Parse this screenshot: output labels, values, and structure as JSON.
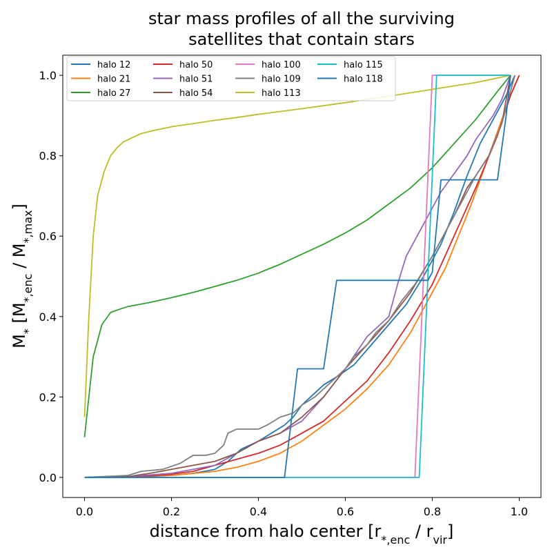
{
  "chart_data": {
    "type": "line",
    "title_lines": [
      "star mass profiles of all the surviving",
      "satellites that contain stars"
    ],
    "xlabel": "distance from halo center [r*,enc / rvir]",
    "ylabel": "M* [M*,enc / M*,max]",
    "xlim": [
      -0.05,
      1.05
    ],
    "ylim": [
      -0.05,
      1.05
    ],
    "xticks": [
      0.0,
      0.2,
      0.4,
      0.6,
      0.8,
      1.0
    ],
    "xtick_labels": [
      "0.0",
      "0.2",
      "0.4",
      "0.6",
      "0.8",
      "1.0"
    ],
    "yticks": [
      0.0,
      0.2,
      0.4,
      0.6,
      0.8,
      1.0
    ],
    "ytick_labels": [
      "0.0",
      "0.2",
      "0.4",
      "0.6",
      "0.8",
      "1.0"
    ],
    "grid": false,
    "legend": {
      "placement": "top-left",
      "columns": 4
    },
    "series": [
      {
        "name": "halo 12",
        "color": "#1f77b4",
        "x": [
          0.0,
          0.1,
          0.2,
          0.25,
          0.3,
          0.33,
          0.36,
          0.4,
          0.43,
          0.46,
          0.48,
          0.5,
          0.52,
          0.55,
          0.58,
          0.62,
          0.66,
          0.7,
          0.74,
          0.78,
          0.82,
          0.85,
          0.88,
          0.91,
          0.94,
          0.97,
          0.99
        ],
        "y": [
          0.0,
          0.0,
          0.005,
          0.01,
          0.02,
          0.04,
          0.07,
          0.09,
          0.11,
          0.13,
          0.15,
          0.18,
          0.2,
          0.23,
          0.25,
          0.28,
          0.33,
          0.38,
          0.43,
          0.5,
          0.58,
          0.66,
          0.75,
          0.83,
          0.89,
          0.95,
          1.0
        ]
      },
      {
        "name": "halo 21",
        "color": "#ff7f0e",
        "x": [
          0.0,
          0.1,
          0.2,
          0.3,
          0.35,
          0.4,
          0.45,
          0.5,
          0.55,
          0.6,
          0.65,
          0.7,
          0.75,
          0.78,
          0.8,
          0.83,
          0.86,
          0.89,
          0.92,
          0.95,
          0.98,
          1.0
        ],
        "y": [
          0.0,
          0.002,
          0.005,
          0.015,
          0.025,
          0.04,
          0.06,
          0.09,
          0.13,
          0.17,
          0.22,
          0.28,
          0.36,
          0.42,
          0.46,
          0.52,
          0.6,
          0.68,
          0.77,
          0.86,
          0.95,
          1.0
        ]
      },
      {
        "name": "halo 27",
        "color": "#2ca02c",
        "x": [
          0.0,
          0.02,
          0.04,
          0.06,
          0.08,
          0.1,
          0.15,
          0.2,
          0.25,
          0.3,
          0.35,
          0.4,
          0.45,
          0.5,
          0.55,
          0.6,
          0.65,
          0.7,
          0.75,
          0.8,
          0.85,
          0.9,
          0.95,
          0.98
        ],
        "y": [
          0.1,
          0.3,
          0.38,
          0.41,
          0.418,
          0.425,
          0.435,
          0.447,
          0.46,
          0.475,
          0.49,
          0.508,
          0.53,
          0.555,
          0.58,
          0.608,
          0.64,
          0.68,
          0.72,
          0.77,
          0.83,
          0.89,
          0.96,
          1.0
        ]
      },
      {
        "name": "halo 50",
        "color": "#d62728",
        "x": [
          0.0,
          0.1,
          0.15,
          0.2,
          0.25,
          0.3,
          0.35,
          0.4,
          0.45,
          0.5,
          0.55,
          0.6,
          0.65,
          0.7,
          0.75,
          0.8,
          0.85,
          0.9,
          0.95,
          0.98,
          1.0
        ],
        "y": [
          0.0,
          0.002,
          0.004,
          0.008,
          0.015,
          0.03,
          0.045,
          0.06,
          0.08,
          0.11,
          0.14,
          0.19,
          0.24,
          0.31,
          0.39,
          0.48,
          0.6,
          0.72,
          0.85,
          0.95,
          1.0
        ]
      },
      {
        "name": "halo 51",
        "color": "#9467bd",
        "x": [
          0.0,
          0.1,
          0.2,
          0.3,
          0.35,
          0.4,
          0.45,
          0.5,
          0.55,
          0.6,
          0.65,
          0.7,
          0.72,
          0.74,
          0.76,
          0.78,
          0.8,
          0.82,
          0.84,
          0.86,
          0.88,
          0.9,
          0.92,
          0.94,
          0.96,
          0.98
        ],
        "y": [
          0.0,
          0.002,
          0.01,
          0.03,
          0.06,
          0.09,
          0.11,
          0.14,
          0.2,
          0.27,
          0.35,
          0.4,
          0.48,
          0.55,
          0.59,
          0.63,
          0.67,
          0.71,
          0.74,
          0.77,
          0.8,
          0.84,
          0.87,
          0.9,
          0.94,
          1.0
        ]
      },
      {
        "name": "halo 54",
        "color": "#8c564b",
        "x": [
          0.0,
          0.1,
          0.15,
          0.2,
          0.25,
          0.3,
          0.35,
          0.4,
          0.45,
          0.5,
          0.55,
          0.6,
          0.65,
          0.7,
          0.75,
          0.8,
          0.85,
          0.88,
          0.9,
          0.93,
          0.96,
          0.98
        ],
        "y": [
          0.0,
          0.002,
          0.01,
          0.02,
          0.03,
          0.04,
          0.06,
          0.09,
          0.11,
          0.15,
          0.2,
          0.27,
          0.33,
          0.39,
          0.46,
          0.55,
          0.65,
          0.72,
          0.75,
          0.8,
          0.88,
          1.0
        ]
      },
      {
        "name": "halo 100",
        "color": "#e377c2",
        "x": [
          0.0,
          0.76,
          0.8,
          0.98
        ],
        "y": [
          0.0,
          0.0,
          1.0,
          1.0
        ]
      },
      {
        "name": "halo 109",
        "color": "#7f7f7f",
        "x": [
          0.0,
          0.1,
          0.13,
          0.18,
          0.22,
          0.25,
          0.28,
          0.3,
          0.32,
          0.33,
          0.35,
          0.38,
          0.4,
          0.42,
          0.45,
          0.48,
          0.5,
          0.53,
          0.55,
          0.58,
          0.6,
          0.62,
          0.65,
          0.67,
          0.7,
          0.73,
          0.76,
          0.8,
          0.85,
          0.9,
          0.93,
          0.96,
          0.99
        ],
        "y": [
          0.0,
          0.005,
          0.015,
          0.02,
          0.035,
          0.055,
          0.055,
          0.06,
          0.08,
          0.11,
          0.12,
          0.12,
          0.12,
          0.13,
          0.15,
          0.16,
          0.18,
          0.2,
          0.22,
          0.25,
          0.27,
          0.3,
          0.33,
          0.36,
          0.39,
          0.44,
          0.48,
          0.55,
          0.65,
          0.75,
          0.8,
          0.88,
          1.0
        ]
      },
      {
        "name": "halo 113",
        "color": "#bcbd22",
        "x": [
          0.0,
          0.01,
          0.02,
          0.03,
          0.045,
          0.06,
          0.075,
          0.09,
          0.11,
          0.13,
          0.16,
          0.2,
          0.25,
          0.3,
          0.35,
          0.4,
          0.5,
          0.6,
          0.7,
          0.8,
          0.9,
          0.98
        ],
        "y": [
          0.15,
          0.4,
          0.6,
          0.7,
          0.76,
          0.8,
          0.82,
          0.835,
          0.845,
          0.855,
          0.863,
          0.872,
          0.88,
          0.888,
          0.895,
          0.903,
          0.917,
          0.932,
          0.948,
          0.965,
          0.982,
          1.0
        ]
      },
      {
        "name": "halo 115",
        "color": "#17becf",
        "x": [
          0.0,
          0.77,
          0.81,
          0.98
        ],
        "y": [
          0.0,
          0.0,
          1.0,
          1.0
        ]
      },
      {
        "name": "halo 118",
        "color": "#1f77b4",
        "x": [
          0.0,
          0.46,
          0.49,
          0.55,
          0.58,
          0.72,
          0.76,
          0.79,
          0.8,
          0.82,
          0.85,
          0.89,
          0.95,
          0.97,
          0.98
        ],
        "y": [
          0.0,
          0.0,
          0.27,
          0.27,
          0.49,
          0.49,
          0.49,
          0.49,
          0.51,
          0.74,
          0.74,
          0.74,
          0.74,
          0.9,
          1.0
        ]
      }
    ]
  }
}
